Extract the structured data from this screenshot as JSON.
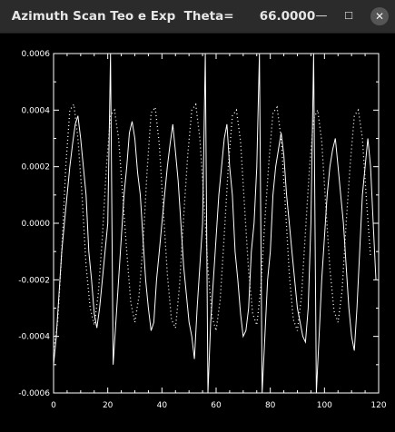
{
  "window": {
    "title": "Azimuth Scan Teo e Exp  Theta=      66.0000",
    "minimize_glyph": "—",
    "maximize_glyph": "☐",
    "close_glyph": "✕"
  },
  "chart_data": {
    "type": "line",
    "title": "",
    "xlabel": "",
    "ylabel": "",
    "xlim": [
      0,
      120
    ],
    "ylim": [
      -0.0006,
      0.0006
    ],
    "xticks": [
      "0",
      "20",
      "40",
      "60",
      "80",
      "100",
      "120"
    ],
    "yticks": [
      "0.0006",
      "0.0004",
      "0.0002",
      "0.0000",
      "-0.0002",
      "-0.0004",
      "-0.0006"
    ],
    "background": "#000000",
    "line_color": "#ffffff",
    "grid": false,
    "legend": "none",
    "series": [
      {
        "style": "dotted",
        "x": [
          0,
          1.5,
          3,
          4.5,
          6,
          7.5,
          9,
          10.5,
          12,
          13.5,
          15,
          16.5,
          18,
          19.5,
          21,
          22.5,
          24,
          25.5,
          27,
          28.5,
          30,
          31.5,
          33,
          34.5,
          36,
          37.5,
          39,
          40.5,
          42,
          43.5,
          45,
          46.5,
          48,
          49.5,
          51,
          52.5,
          54,
          55.5,
          57,
          58.5,
          60,
          61.5,
          63,
          64.5,
          66,
          67.5,
          69,
          70.5,
          72,
          73.5,
          75,
          76.5,
          78,
          79.5,
          81,
          82.5,
          84,
          85.5,
          87,
          88.5,
          90,
          91.5,
          93,
          94.5,
          96,
          97.5,
          99,
          100.5,
          102,
          103.5,
          105,
          106.5,
          108,
          109.5,
          111,
          112.5,
          114,
          115.5,
          117
        ],
        "y": [
          -0.00045,
          -0.00035,
          -0.0001,
          0.0002,
          0.0004,
          0.00042,
          0.0003,
          0.0001,
          -0.00015,
          -0.0003,
          -0.00036,
          -0.00025,
          -5e-05,
          0.0002,
          0.00038,
          0.0004,
          0.0003,
          0.0001,
          -0.0001,
          -0.00028,
          -0.00035,
          -0.00026,
          -8e-05,
          0.00018,
          0.00039,
          0.00041,
          0.00028,
          5e-05,
          -0.00018,
          -0.00034,
          -0.00037,
          -0.00022,
          2e-05,
          0.00024,
          0.0004,
          0.00042,
          0.0003,
          8e-05,
          -0.00016,
          -0.00033,
          -0.00038,
          -0.00027,
          -4e-05,
          0.0002,
          0.00038,
          0.0004,
          0.00029,
          6e-05,
          -0.00017,
          -0.00032,
          -0.00036,
          -0.00023,
          1e-05,
          0.00022,
          0.00039,
          0.00041,
          0.0003,
          7e-05,
          -0.00018,
          -0.00034,
          -0.00038,
          -0.00026,
          -3e-05,
          0.0002,
          0.00037,
          0.0004,
          0.00029,
          6e-05,
          -0.00016,
          -0.00031,
          -0.00035,
          -0.00024,
          0.0,
          0.00021,
          0.00038,
          0.0004,
          0.0003,
          8e-05,
          -0.00012
        ]
      },
      {
        "style": "solid",
        "x": [
          0,
          1,
          2,
          3,
          4,
          5,
          6,
          7,
          8,
          9,
          10,
          11,
          12,
          13,
          14,
          15,
          16,
          17,
          18,
          19,
          20,
          21,
          22,
          23,
          24,
          25,
          26,
          27,
          28,
          29,
          30,
          31,
          32,
          33,
          34,
          35,
          36,
          37,
          38,
          39,
          40,
          41,
          42,
          43,
          44,
          45,
          46,
          47,
          48,
          49,
          50,
          51,
          52,
          53,
          54,
          55,
          56,
          57,
          58,
          59,
          60,
          61,
          62,
          63,
          64,
          65,
          66,
          67,
          68,
          69,
          70,
          71,
          72,
          73,
          74,
          75,
          76,
          77,
          78,
          79,
          80,
          81,
          82,
          83,
          84,
          85,
          86,
          87,
          88,
          89,
          90,
          91,
          92,
          93,
          94,
          95,
          96,
          97,
          98,
          99,
          100,
          101,
          102,
          103,
          104,
          105,
          106,
          107,
          108,
          109,
          110,
          111,
          112,
          113,
          114,
          115,
          116,
          117,
          118,
          119
        ],
        "y": [
          -0.0005,
          -0.0004,
          -0.00025,
          -0.0001,
          0.0,
          0.0001,
          0.0002,
          0.00028,
          0.00035,
          0.00038,
          0.0003,
          0.0002,
          0.0001,
          -0.0001,
          -0.0002,
          -0.00032,
          -0.00037,
          -0.0003,
          -0.0002,
          -0.0001,
          0.0,
          0.0006,
          -0.0005,
          -0.00035,
          -0.0002,
          -5e-05,
          0.0001,
          0.0002,
          0.00032,
          0.00036,
          0.0003,
          0.00018,
          0.0001,
          -5e-05,
          -0.0002,
          -0.0003,
          -0.00038,
          -0.00035,
          -0.0002,
          -0.0001,
          0.0,
          0.0001,
          0.0002,
          0.00028,
          0.00035,
          0.00025,
          0.00015,
          0.0,
          -0.00015,
          -0.00025,
          -0.00035,
          -0.0004,
          -0.00048,
          -0.0003,
          -0.00015,
          0.0,
          0.0006,
          -0.0006,
          -0.00035,
          -0.0002,
          -5e-05,
          0.0001,
          0.0002,
          0.0003,
          0.00035,
          0.0002,
          0.0001,
          -0.0001,
          -0.0002,
          -0.00032,
          -0.0004,
          -0.00038,
          -0.0003,
          -0.0001,
          0.0,
          0.0002,
          0.0006,
          -0.0006,
          -0.0004,
          -0.0002,
          -0.0001,
          0.0001,
          0.0002,
          0.00026,
          0.00032,
          0.00024,
          0.0001,
          0.0,
          -0.0001,
          -0.0002,
          -0.0003,
          -0.00035,
          -0.0004,
          -0.00042,
          -0.0003,
          0.0,
          0.0006,
          -0.0006,
          -0.0004,
          -0.0002,
          -5e-05,
          0.0001,
          0.0002,
          0.00026,
          0.0003,
          0.0002,
          0.0001,
          0.0,
          -0.00015,
          -0.0003,
          -0.0004,
          -0.00045,
          -0.0003,
          -0.0001,
          0.0001,
          0.0002,
          0.0003,
          0.0002,
          0.0,
          -0.0002
        ]
      }
    ]
  }
}
